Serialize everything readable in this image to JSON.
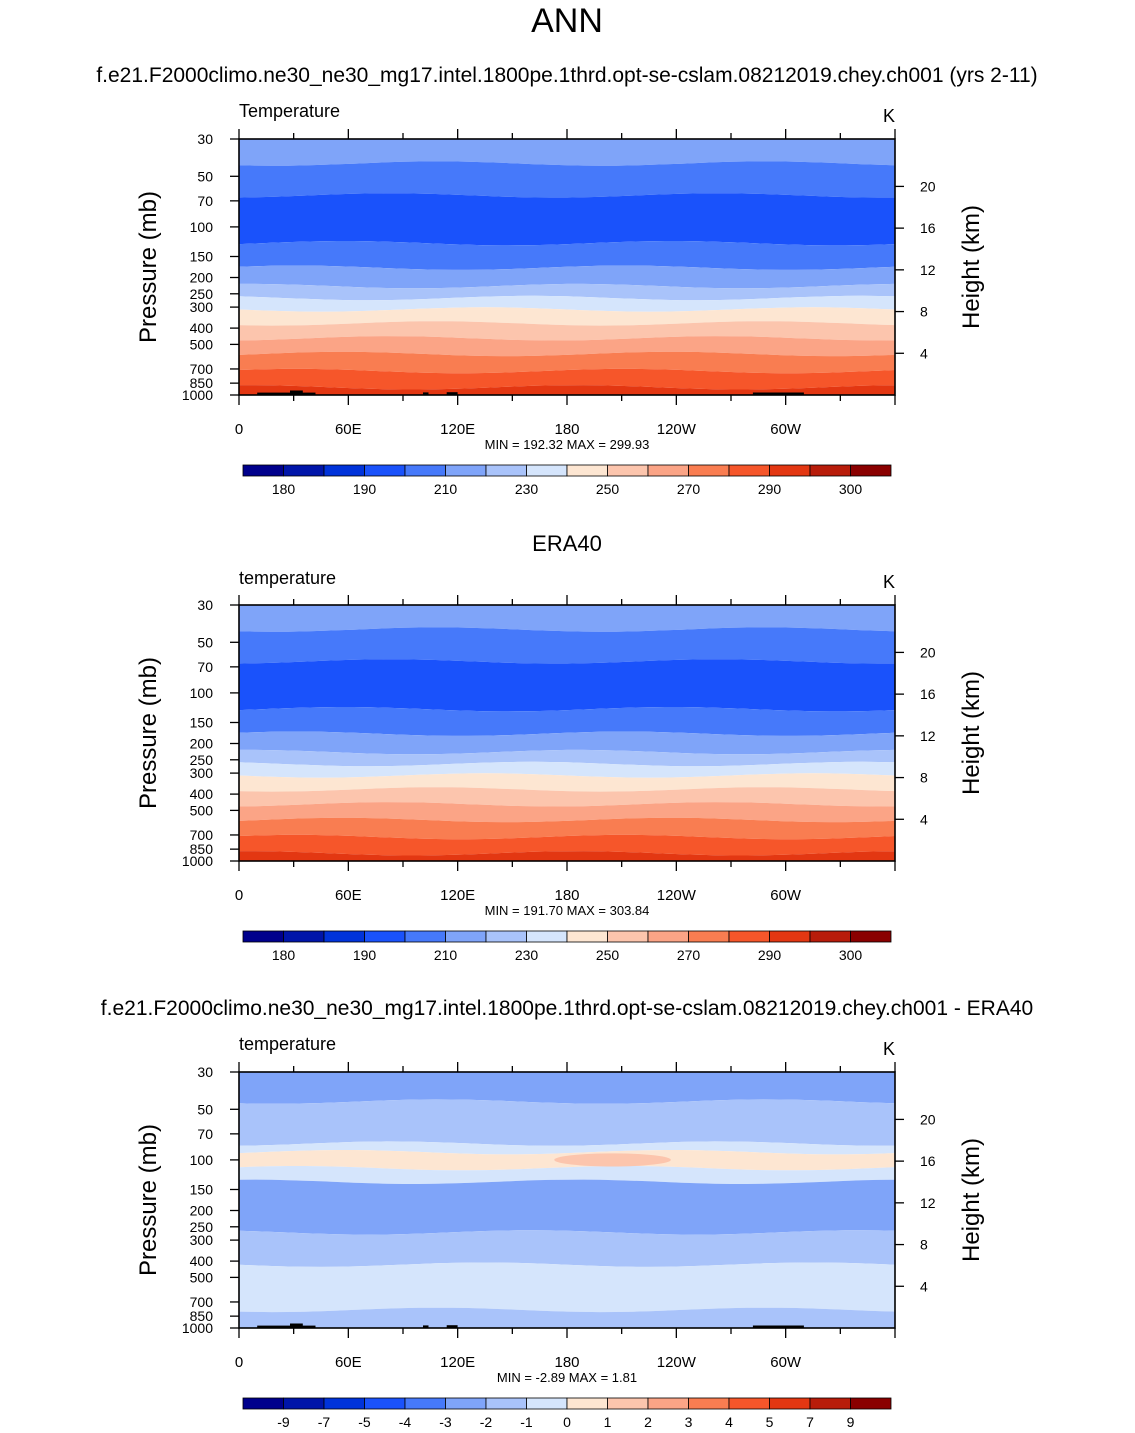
{
  "page": {
    "title": "ANN"
  },
  "chart_data": [
    {
      "type": "heatmap",
      "subtitle": "f.e21.F2000climo.ne30_ne30_mg17.intel.1800pe.1thrd.opt-se-cslam.08212019.chey.ch001 (yrs 2-11)",
      "left_label": "Temperature",
      "unit": "K",
      "ylabel": "Pressure (mb)",
      "ylabel_right": "Height (km)",
      "yscale": "log",
      "ylim": [
        1000,
        30
      ],
      "pressure_ticks": [
        "30",
        "50",
        "70",
        "100",
        "150",
        "200",
        "250",
        "300",
        "400",
        "500",
        "700",
        "850",
        "1000"
      ],
      "height_ticks": [
        "20",
        "16",
        "12",
        "8",
        "4"
      ],
      "xlim": [
        0,
        360
      ],
      "x_ticks": [
        "0",
        "60E",
        "120E",
        "180",
        "120W",
        "60W"
      ],
      "stats": "MIN = 192.32  MAX = 299.93",
      "colorbar": {
        "labels": [
          "180",
          "190",
          "210",
          "230",
          "250",
          "270",
          "290",
          "300"
        ],
        "colors": [
          "#00008c",
          "#0015a9",
          "#0033da",
          "#1a52fb",
          "#4679fa",
          "#7fa4f9",
          "#a9c3fa",
          "#d5e5fc",
          "#fde6d2",
          "#fcc5ad",
          "#fba486",
          "#f97d51",
          "#f6562a",
          "#e33712",
          "#b81c0a",
          "#8a0000"
        ]
      },
      "bands_pressure_mb": [
        {
          "top": 30,
          "bottom": 42,
          "color_index": 5
        },
        {
          "top": 42,
          "bottom": 65,
          "color_index": 4
        },
        {
          "top": 65,
          "bottom": 125,
          "color_index": 3
        },
        {
          "top": 125,
          "bottom": 175,
          "color_index": 4
        },
        {
          "top": 175,
          "bottom": 225,
          "color_index": 5
        },
        {
          "top": 225,
          "bottom": 265,
          "color_index": 6
        },
        {
          "top": 265,
          "bottom": 310,
          "color_index": 7
        },
        {
          "top": 310,
          "bottom": 375,
          "color_index": 8
        },
        {
          "top": 375,
          "bottom": 460,
          "color_index": 9
        },
        {
          "top": 460,
          "bottom": 570,
          "color_index": 10
        },
        {
          "top": 570,
          "bottom": 720,
          "color_index": 11
        },
        {
          "top": 720,
          "bottom": 900,
          "color_index": 12
        },
        {
          "top": 900,
          "bottom": 1000,
          "color_index": 13
        }
      ],
      "terrain": true
    },
    {
      "type": "heatmap",
      "subtitle": "ERA40",
      "left_label": "temperature",
      "unit": "K",
      "ylabel": "Pressure (mb)",
      "ylabel_right": "Height (km)",
      "yscale": "log",
      "ylim": [
        1000,
        30
      ],
      "pressure_ticks": [
        "30",
        "50",
        "70",
        "100",
        "150",
        "200",
        "250",
        "300",
        "400",
        "500",
        "700",
        "850",
        "1000"
      ],
      "height_ticks": [
        "20",
        "16",
        "12",
        "8",
        "4"
      ],
      "xlim": [
        0,
        360
      ],
      "x_ticks": [
        "0",
        "60E",
        "120E",
        "180",
        "120W",
        "60W"
      ],
      "stats": "MIN = 191.70  MAX = 303.84",
      "colorbar": {
        "labels": [
          "180",
          "190",
          "210",
          "230",
          "250",
          "270",
          "290",
          "300"
        ],
        "colors": [
          "#00008c",
          "#0015a9",
          "#0033da",
          "#1a52fb",
          "#4679fa",
          "#7fa4f9",
          "#a9c3fa",
          "#d5e5fc",
          "#fde6d2",
          "#fcc5ad",
          "#fba486",
          "#f97d51",
          "#f6562a",
          "#e33712",
          "#b81c0a",
          "#8a0000"
        ]
      },
      "bands_pressure_mb": [
        {
          "top": 30,
          "bottom": 42,
          "color_index": 5
        },
        {
          "top": 42,
          "bottom": 65,
          "color_index": 4
        },
        {
          "top": 65,
          "bottom": 125,
          "color_index": 3
        },
        {
          "top": 125,
          "bottom": 175,
          "color_index": 4
        },
        {
          "top": 175,
          "bottom": 225,
          "color_index": 5
        },
        {
          "top": 225,
          "bottom": 265,
          "color_index": 6
        },
        {
          "top": 265,
          "bottom": 310,
          "color_index": 7
        },
        {
          "top": 310,
          "bottom": 375,
          "color_index": 8
        },
        {
          "top": 375,
          "bottom": 460,
          "color_index": 9
        },
        {
          "top": 460,
          "bottom": 570,
          "color_index": 10
        },
        {
          "top": 570,
          "bottom": 720,
          "color_index": 11
        },
        {
          "top": 720,
          "bottom": 900,
          "color_index": 12
        },
        {
          "top": 900,
          "bottom": 1000,
          "color_index": 13
        }
      ],
      "terrain": false
    },
    {
      "type": "heatmap",
      "subtitle": "f.e21.F2000climo.ne30_ne30_mg17.intel.1800pe.1thrd.opt-se-cslam.08212019.chey.ch001 - ERA40",
      "left_label": "temperature",
      "unit": "K",
      "ylabel": "Pressure (mb)",
      "ylabel_right": "Height (km)",
      "yscale": "log",
      "ylim": [
        1000,
        30
      ],
      "pressure_ticks": [
        "30",
        "50",
        "70",
        "100",
        "150",
        "200",
        "250",
        "300",
        "400",
        "500",
        "700",
        "850",
        "1000"
      ],
      "height_ticks": [
        "20",
        "16",
        "12",
        "8",
        "4"
      ],
      "xlim": [
        0,
        360
      ],
      "x_ticks": [
        "0",
        "60E",
        "120E",
        "180",
        "120W",
        "60W"
      ],
      "stats": "MIN =  -2.89  MAX =   1.81",
      "colorbar": {
        "labels": [
          "-9",
          "-7",
          "-5",
          "-4",
          "-3",
          "-2",
          "-1",
          "0",
          "1",
          "2",
          "3",
          "4",
          "5",
          "7",
          "9"
        ],
        "colors": [
          "#00008c",
          "#0015a9",
          "#0033da",
          "#1a52fb",
          "#4679fa",
          "#7fa4f9",
          "#a9c3fa",
          "#d5e5fc",
          "#fde6d2",
          "#fcc5ad",
          "#fba486",
          "#f97d51",
          "#f6562a",
          "#e33712",
          "#b81c0a",
          "#8a0000"
        ]
      },
      "bands_pressure_mb": [
        {
          "top": 30,
          "bottom": 45,
          "color_index": 5
        },
        {
          "top": 45,
          "bottom": 80,
          "color_index": 6
        },
        {
          "top": 80,
          "bottom": 90,
          "color_index": 7
        },
        {
          "top": 90,
          "bottom": 112,
          "color_index": 8
        },
        {
          "top": 112,
          "bottom": 135,
          "color_index": 7
        },
        {
          "top": 135,
          "bottom": 270,
          "color_index": 5
        },
        {
          "top": 270,
          "bottom": 420,
          "color_index": 6
        },
        {
          "top": 420,
          "bottom": 780,
          "color_index": 7
        },
        {
          "top": 780,
          "bottom": 1000,
          "color_index": 6
        }
      ],
      "blobs": [
        {
          "lon": 205,
          "p": 100,
          "lon_halfwidth": 32,
          "p_factor": 1.05,
          "color_index": 9
        }
      ],
      "terrain": true
    }
  ]
}
